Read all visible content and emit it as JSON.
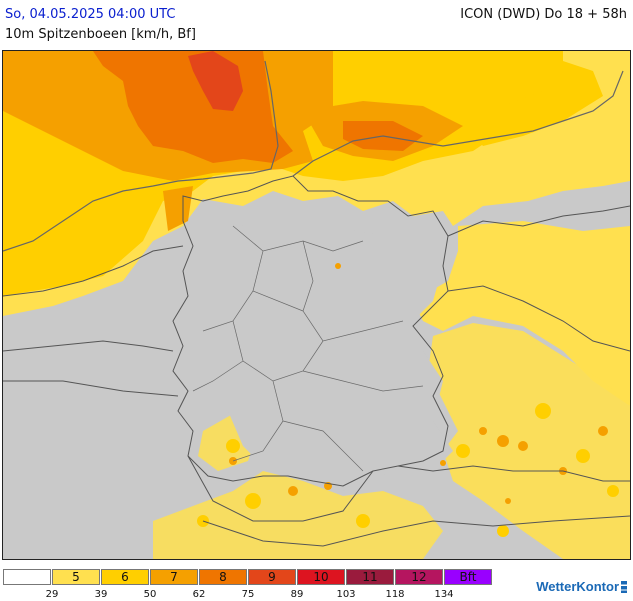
{
  "header": {
    "date": "So, 04.05.2025 04:00 UTC",
    "model": "ICON (DWD) Do 18 + 58h",
    "parameter": "10m Spitzenboeen [km/h, Bf]"
  },
  "map": {
    "region": "Deutschland",
    "colors": {
      "land": "#c9c9c9",
      "sea": "#ffffff",
      "border": "#555555",
      "coast": "#666666",
      "bf5": "#ffe04f",
      "bf6": "#ffcf00",
      "bf7": "#f5a000",
      "bf8": "#ef7500",
      "bf9": "#e3461a"
    }
  },
  "legend": {
    "classes": [
      {
        "label": "",
        "color": "#ffffff"
      },
      {
        "label": "5",
        "color": "#ffe04f"
      },
      {
        "label": "6",
        "color": "#ffcf00"
      },
      {
        "label": "7",
        "color": "#f5a000"
      },
      {
        "label": "8",
        "color": "#ef7500"
      },
      {
        "label": "9",
        "color": "#e3461a"
      },
      {
        "label": "10",
        "color": "#dd1420"
      },
      {
        "label": "11",
        "color": "#9a1b3d"
      },
      {
        "label": "12",
        "color": "#b5155f"
      },
      {
        "label": "Bft",
        "color": "#9900ff"
      }
    ],
    "ticks": [
      "29",
      "39",
      "50",
      "62",
      "75",
      "89",
      "103",
      "118",
      "134"
    ]
  },
  "brand": {
    "name": "WetterKontor"
  }
}
